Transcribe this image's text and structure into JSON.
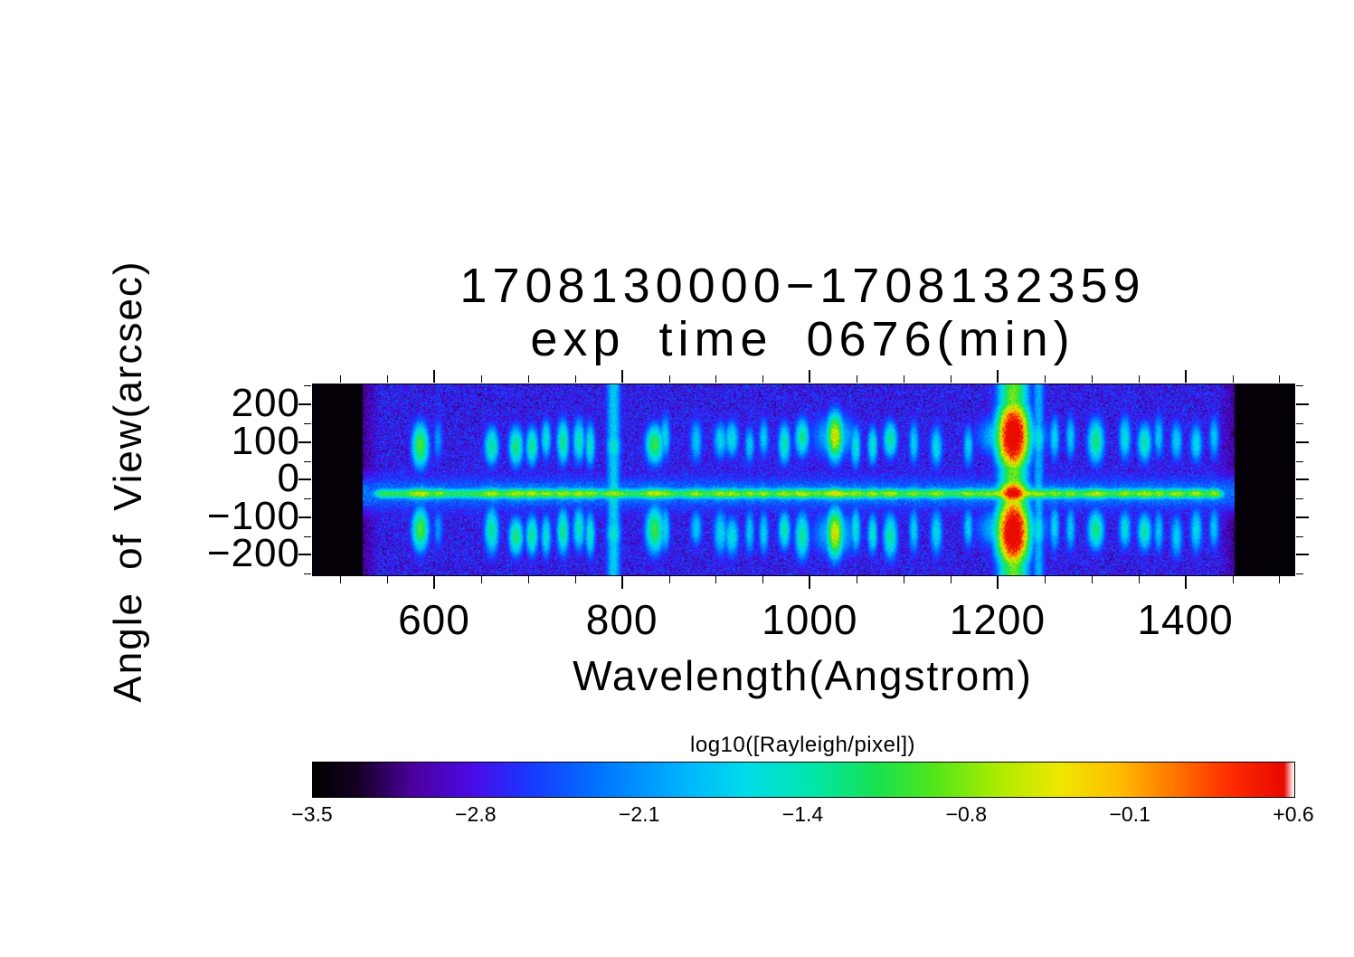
{
  "chart_data": {
    "type": "heatmap",
    "title_line1": "1708130000−1708132359",
    "title_line2": "exp time 0676(min)",
    "xlabel": "Wavelength(Angstrom)",
    "ylabel": "Angle of View(arcsec)",
    "x_ticks": [
      600,
      800,
      1000,
      1200,
      1400
    ],
    "x_tick_labels": [
      "600",
      "800",
      "1000",
      "1200",
      "1400"
    ],
    "y_ticks": [
      200,
      100,
      0,
      -100,
      -200
    ],
    "y_tick_labels": [
      "200",
      "100",
      "0",
      "−100",
      "−200"
    ],
    "x_range": [
      470,
      1515
    ],
    "y_range": [
      -252,
      256
    ],
    "data_x_range": [
      523,
      1452
    ],
    "x_minor_step": 50,
    "y_minor_step": 50,
    "value_units": "log10(Rayleigh/pixel)",
    "colorbar": {
      "label": "log10([Rayleigh/pixel])",
      "tick_labels": [
        "−3.5",
        "−2.8",
        "−2.1",
        "−1.4",
        "−0.8",
        "−0.1",
        "+0.6"
      ],
      "min": -3.5,
      "max": 0.6
    },
    "background": {
      "level_min": 0.1,
      "level_max": 0.27
    },
    "limb_band": {
      "y_center": -35,
      "sigma": 13,
      "amplitude": 0.5
    },
    "upper_glow": {
      "wl_center": 980,
      "wl_sigma": 170,
      "y_center": 95,
      "y_sigma": 85,
      "amplitude": 0.11
    },
    "lobes": {
      "upper_y": 105,
      "upper_sigma": 48,
      "lower_y": -138,
      "lower_sigma": 50
    },
    "colormap_stops": [
      [
        0.0,
        0,
        0,
        0
      ],
      [
        0.045,
        20,
        0,
        35
      ],
      [
        0.1,
        75,
        0,
        155
      ],
      [
        0.16,
        75,
        10,
        230
      ],
      [
        0.22,
        25,
        55,
        255
      ],
      [
        0.29,
        0,
        115,
        255
      ],
      [
        0.37,
        0,
        175,
        255
      ],
      [
        0.44,
        0,
        220,
        235
      ],
      [
        0.51,
        0,
        230,
        170
      ],
      [
        0.575,
        25,
        225,
        80
      ],
      [
        0.635,
        85,
        230,
        25
      ],
      [
        0.7,
        175,
        235,
        0
      ],
      [
        0.76,
        238,
        232,
        0
      ],
      [
        0.82,
        255,
        190,
        0
      ],
      [
        0.88,
        255,
        115,
        0
      ],
      [
        0.935,
        255,
        45,
        0
      ],
      [
        0.99,
        232,
        8,
        0
      ],
      [
        1.0,
        255,
        255,
        255
      ]
    ],
    "emission_lines": [
      {
        "wl": 584,
        "L": -0.95,
        "w": 8
      },
      {
        "wl": 603,
        "L": -2.1,
        "w": 5
      },
      {
        "wl": 660,
        "L": -1.35,
        "w": 7
      },
      {
        "wl": 686,
        "L": -1.2,
        "w": 7
      },
      {
        "wl": 703,
        "L": -1.3,
        "w": 6
      },
      {
        "wl": 718,
        "L": -1.55,
        "w": 5
      },
      {
        "wl": 736,
        "L": -1.3,
        "w": 6
      },
      {
        "wl": 753,
        "L": -1.45,
        "w": 6
      },
      {
        "wl": 765,
        "L": -1.5,
        "w": 5
      },
      {
        "wl": 790,
        "L": -1.5,
        "w": 7,
        "fc": 0.85
      },
      {
        "wl": 834,
        "L": -1.05,
        "w": 9
      },
      {
        "wl": 845,
        "L": -1.7,
        "w": 5
      },
      {
        "wl": 878,
        "L": -1.8,
        "w": 6
      },
      {
        "wl": 904,
        "L": -1.7,
        "w": 7,
        "ct": 1.2
      },
      {
        "wl": 916,
        "L": -1.6,
        "w": 7,
        "ct": 1.2
      },
      {
        "wl": 935,
        "L": -1.8,
        "w": 5,
        "ct": 1.4
      },
      {
        "wl": 950,
        "L": -1.75,
        "w": 5,
        "ct": 1.2
      },
      {
        "wl": 972,
        "L": -1.4,
        "w": 6
      },
      {
        "wl": 991,
        "L": -1.3,
        "w": 7
      },
      {
        "wl": 1026,
        "L": -0.4,
        "w": 8
      },
      {
        "wl": 1026,
        "L": -1.8,
        "w": 22
      },
      {
        "wl": 1048,
        "L": -1.55,
        "w": 5
      },
      {
        "wl": 1066,
        "L": -1.5,
        "w": 5
      },
      {
        "wl": 1085,
        "L": -1.35,
        "w": 7
      },
      {
        "wl": 1110,
        "L": -1.75,
        "w": 5
      },
      {
        "wl": 1134,
        "L": -1.65,
        "w": 6
      },
      {
        "wl": 1168,
        "L": -1.75,
        "w": 5
      },
      {
        "wl": 1200,
        "L": -1.25,
        "w": 7
      },
      {
        "wl": 1216,
        "L": 0.45,
        "w": 14,
        "big": 1
      },
      {
        "wl": 1216,
        "L": -1.3,
        "w": 30
      },
      {
        "wl": 1243,
        "L": -1.6,
        "w": 6,
        "fc": 0.8
      },
      {
        "wl": 1260,
        "L": -1.7,
        "w": 5
      },
      {
        "wl": 1277,
        "L": -1.8,
        "w": 5
      },
      {
        "wl": 1304,
        "L": -1.25,
        "w": 8
      },
      {
        "wl": 1335,
        "L": -1.6,
        "w": 6
      },
      {
        "wl": 1356,
        "L": -1.4,
        "w": 7
      },
      {
        "wl": 1371,
        "L": -1.8,
        "w": 5
      },
      {
        "wl": 1390,
        "L": -1.75,
        "w": 6
      },
      {
        "wl": 1411,
        "L": -1.65,
        "w": 6
      },
      {
        "wl": 1430,
        "L": -1.8,
        "w": 5
      }
    ]
  }
}
